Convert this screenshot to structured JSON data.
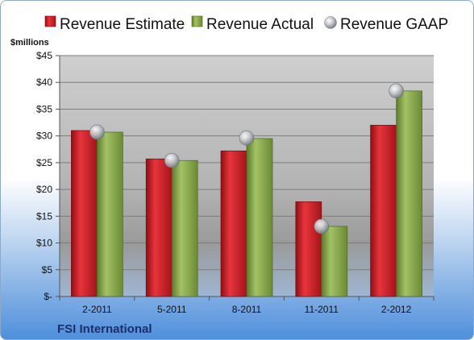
{
  "chart_data": {
    "type": "bar",
    "categories": [
      "2-2011",
      "5-2011",
      "8-2011",
      "11-2011",
      "2-2012"
    ],
    "series": [
      {
        "name": "Revenue Estimate",
        "values": [
          31.0,
          25.7,
          27.2,
          17.7,
          32.0
        ],
        "color": "#d0202a"
      },
      {
        "name": "Revenue Actual",
        "values": [
          30.7,
          25.4,
          29.5,
          13.1,
          38.4
        ],
        "color": "#86a84a"
      },
      {
        "name": "Revenue GAAP",
        "values": [
          30.7,
          25.4,
          29.6,
          13.1,
          38.4
        ],
        "color": "#b8bdc4",
        "marker": "sphere"
      }
    ],
    "ylabel": "$millions",
    "ylim": [
      0,
      45
    ],
    "yticks": [
      0,
      5,
      10,
      15,
      20,
      25,
      30,
      35,
      40,
      45
    ],
    "ytick_labels": [
      "$-",
      "$5",
      "$10",
      "$15",
      "$20",
      "$25",
      "$30",
      "$35",
      "$40",
      "$45"
    ],
    "grid": true,
    "legend_position": "top"
  },
  "footer": {
    "company": "FSI International"
  }
}
